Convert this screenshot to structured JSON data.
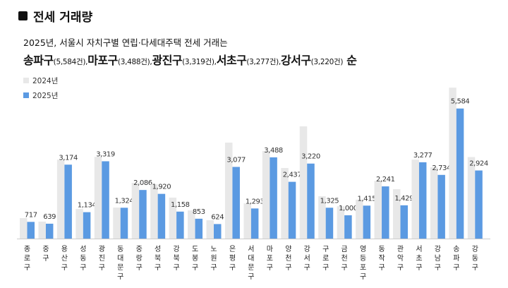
{
  "header": {
    "title": "전세 거래량"
  },
  "subtitle": "2025년, 서울시 자치구별 연립·다세대주택 전세 거래는",
  "highlights": [
    {
      "name": "송파구",
      "value": "(5,584건),"
    },
    {
      "name": "마포구",
      "value": "(3,488건),"
    },
    {
      "name": "광진구",
      "value": "(3,319건),"
    },
    {
      "name": "서초구",
      "value": "(3,277건),"
    },
    {
      "name": "강서구",
      "value": "(3,220건)"
    }
  ],
  "highlight_suffix": "순",
  "chart_data": {
    "type": "bar",
    "categories": [
      "종로구",
      "중구",
      "용산구",
      "성동구",
      "광진구",
      "동대문구",
      "중랑구",
      "성북구",
      "강북구",
      "도봉구",
      "노원구",
      "은평구",
      "서대문구",
      "마포구",
      "양천구",
      "강서구",
      "구로구",
      "금천구",
      "영등포구",
      "동작구",
      "관악구",
      "서초구",
      "강남구",
      "송파구",
      "강동구"
    ],
    "series": [
      {
        "name": "2024년",
        "color": "#e8e8e8",
        "values": [
          880,
          730,
          3390,
          1270,
          3510,
          1330,
          2390,
          2330,
          1760,
          1210,
          790,
          4120,
          1510,
          3760,
          3030,
          4820,
          1820,
          1390,
          1670,
          2480,
          2120,
          3390,
          3060,
          6480,
          3500
        ]
      },
      {
        "name": "2025년",
        "color": "#5b9ae2",
        "values": [
          717,
          639,
          3174,
          1134,
          3319,
          1324,
          2086,
          1920,
          1158,
          853,
          624,
          3077,
          1293,
          3488,
          2437,
          3220,
          1325,
          1000,
          1415,
          2241,
          1429,
          3277,
          2734,
          5584,
          2924
        ]
      }
    ],
    "data_labels": [
      "717",
      "639",
      "3,174",
      "1,134",
      "3,319",
      "1,324",
      "2,086",
      "1,920",
      "1,158",
      "853",
      "624",
      "3,077",
      "1,293",
      "3,488",
      "2,437",
      "3,220",
      "1,325",
      "1,000",
      "1,415",
      "2,241",
      "1,429",
      "3,277",
      "2,734",
      "5,584",
      "2,924"
    ],
    "legend_position": "top-left",
    "grid": false
  }
}
